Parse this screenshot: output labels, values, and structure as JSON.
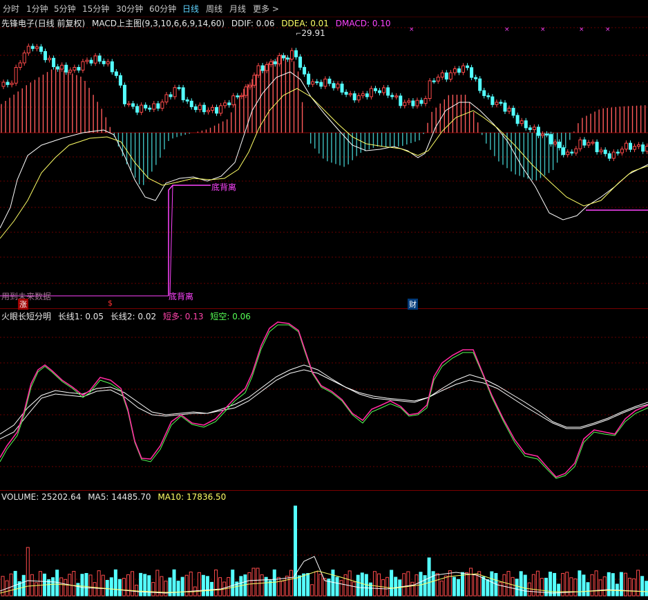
{
  "tabs": [
    "分时",
    "1分钟",
    "5分钟",
    "15分钟",
    "30分钟",
    "60分钟",
    "日线",
    "周线",
    "月线",
    "更多 >"
  ],
  "active_tab": "日线",
  "panel_main": {
    "stock": "先锋电子",
    "mode": "(日线 前复权)",
    "indicator": "MACD上主图(9,3,10,6,6,9,14,60)",
    "ddif": "DDIF: 0.06",
    "ddea": "DDEA: 0.01",
    "dmacd": "DMACD: 0.10",
    "high_label": "29.91",
    "divergence_label_1": "底背离",
    "divergence_label_2": "底背离",
    "future_data_note": "用到未来数据",
    "marker_zhang": "涨",
    "marker_s": "$",
    "marker_cai": "财"
  },
  "panel_mid": {
    "title": "火眼长短分明",
    "long1": "长线1: 0.05",
    "long2": "长线2: 0.02",
    "short_bull": "短多: 0.13",
    "short_bear": "短空: 0.06"
  },
  "panel_vol": {
    "volume": "VOLUME: 25202.64",
    "ma5": "MA5: 14485.70",
    "ma10": "MA10: 17836.50"
  },
  "colors": {
    "up": "#ff4b4b",
    "down": "#54ffff",
    "white_line": "#ffffff",
    "yellow_line": "#ffff66",
    "magenta": "#ff44ff",
    "green_line": "#55ff55",
    "grid": "#6a0000",
    "tab_active": "#5fd3ff"
  }
}
